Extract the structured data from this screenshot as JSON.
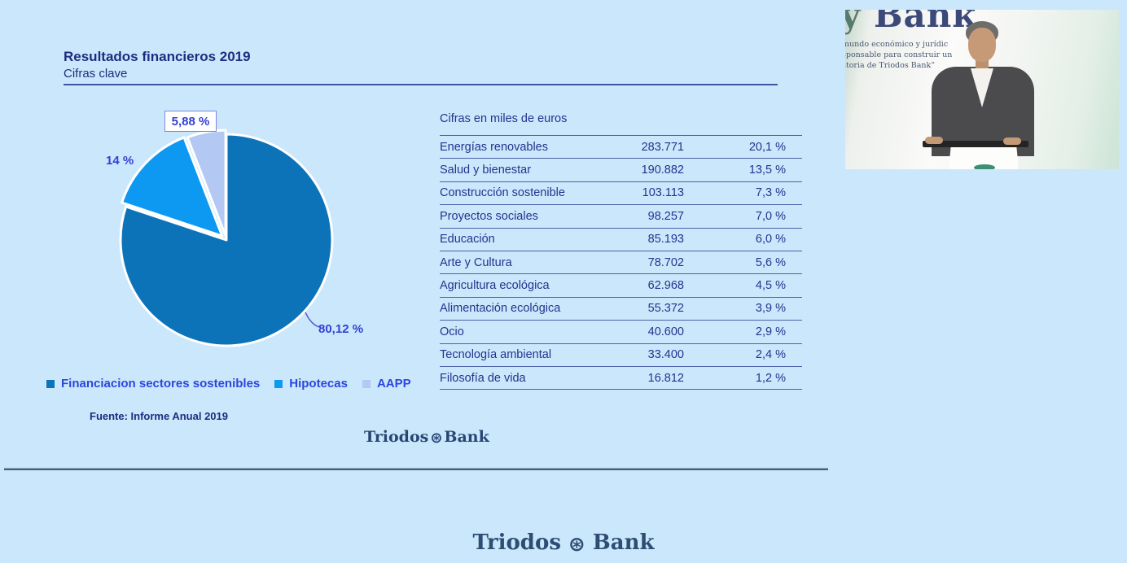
{
  "theme": {
    "page_bg": "#cbe7fb",
    "title_text": "#1e2c80",
    "table_text": "#24338f",
    "table_line": "#5061a8",
    "rule_line": "#44549e",
    "label_text": "#3440d6",
    "label_box_border": "#8383e8",
    "legend_text": "#2b46df",
    "logo_color": "#2a4574",
    "footer_logo_color": "#2e4d74"
  },
  "slide": {
    "title": "Resultados financieros 2019",
    "subtitle": "Cifras clave",
    "source": "Fuente: Informe Anual 2019"
  },
  "logos": {
    "emblem_glyph": "⊛",
    "slide": {
      "left": "Triodos",
      "right": "Bank"
    },
    "footer": {
      "left": "Triodos",
      "right": "Bank"
    }
  },
  "chart_data": [
    {
      "type": "pie",
      "labels": [
        "Financiacion sectores sostenibles",
        "Hipotecas",
        "AAPP"
      ],
      "values": [
        80.12,
        14.0,
        5.88
      ],
      "value_labels": [
        "80,12 %",
        "14 %",
        "5,88 %"
      ],
      "colors": [
        "#0d73b8",
        "#0d99f2",
        "#b3c9f4"
      ],
      "start_angle_deg": 0,
      "direction": "clockwise",
      "legend_position": "bottom-left",
      "slice_stroke": "#ffffff"
    },
    {
      "type": "table",
      "title": "Cifras en miles de euros",
      "rows": [
        [
          "Energías renovables",
          "283.771",
          "20,1 %"
        ],
        [
          "Salud y bienestar",
          "190.882",
          "13,5 %"
        ],
        [
          "Construcción sostenible",
          "103.113",
          "7,3 %"
        ],
        [
          "Proyectos sociales",
          "98.257",
          "7,0 %"
        ],
        [
          "Educación",
          "85.193",
          "6,0 %"
        ],
        [
          "Arte y Cultura",
          "78.702",
          "5,6 %"
        ],
        [
          "Agricultura ecológica",
          "62.968",
          "4,5 %"
        ],
        [
          "Alimentación ecológica",
          "55.372",
          "3,9 %"
        ],
        [
          "Ocio",
          "40.600",
          "2,9 %"
        ],
        [
          "Tecnología ambiental",
          "33.400",
          "2,4 %"
        ],
        [
          "Filosofía de vida",
          "16.812",
          "1,2 %"
        ]
      ]
    }
  ],
  "video": {
    "backdrop_word_cropped": "y",
    "backdrop_word_main": "Bank",
    "backdrop_lines": [
      "mundo económico y jurídic",
      "sponsable para construir un",
      "storia de Triodos Bank”"
    ]
  }
}
